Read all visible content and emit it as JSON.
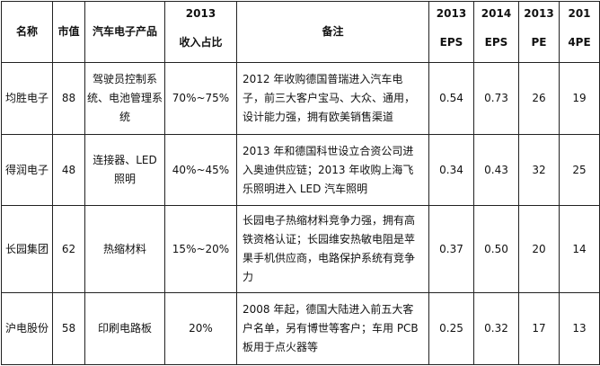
{
  "headers": {
    "name": "名称",
    "mcap": "市值",
    "product": "汽车电子产品",
    "rev_share": {
      "line1": "2013",
      "line2": "收入占比"
    },
    "note": "备注",
    "eps2013": {
      "line1": "2013",
      "line2": "EPS"
    },
    "eps2014": {
      "line1": "2014",
      "line2": "EPS"
    },
    "pe2013": {
      "line1": "2013",
      "line2": "PE"
    },
    "pe2014": {
      "line1": "201",
      "line2": "4PE"
    }
  },
  "rows": [
    {
      "name": "均胜电子",
      "mcap": "88",
      "product": "驾驶员控制系统、电池管理系统",
      "share": "70%~75%",
      "note": "2012 年收购德国普瑞进入汽车电子，前三大客户宝马、大众、通用，设计能力强，拥有欧美销售渠道",
      "eps2013": "0.54",
      "eps2014": "0.73",
      "pe2013": "26",
      "pe2014": "19"
    },
    {
      "name": "得润电子",
      "mcap": "48",
      "product": "连接器、LED 照明",
      "share": "40%~45%",
      "note": "2013 年和德国科世设立合资公司进入奥迪供应链；2013 年收购上海飞乐照明进入 LED 汽车照明",
      "eps2013": "0.34",
      "eps2014": "0.43",
      "pe2013": "32",
      "pe2014": "25"
    },
    {
      "name": "长园集团",
      "mcap": "62",
      "product": "热缩材料",
      "share": "15%~20%",
      "note": "长园电子热缩材料竞争力强，拥有高铁资格认证；长园维安热敏电阻是苹果手机供应商，电路保护系统有竞争力",
      "eps2013": "0.37",
      "eps2014": "0.50",
      "pe2013": "20",
      "pe2014": "14"
    },
    {
      "name": "沪电股份",
      "mcap": "58",
      "product": "印刷电路板",
      "share": "20%",
      "note": "2008 年起，德国大陆进入前五大客户名单，另有博世等客户；车用 PCB 板用于点火器等",
      "eps2013": "0.25",
      "eps2014": "0.32",
      "pe2013": "17",
      "pe2014": "13"
    }
  ]
}
